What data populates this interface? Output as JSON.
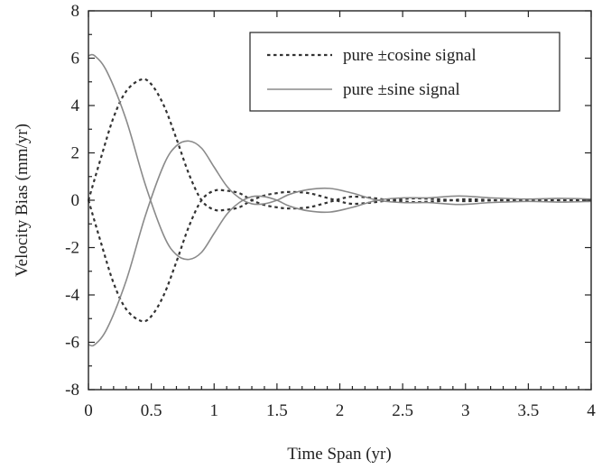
{
  "chart_data": {
    "type": "line",
    "title": "",
    "xlabel": "Time Span (yr)",
    "ylabel": "Velocity Bias (mm/yr)",
    "xlim": [
      0,
      4
    ],
    "ylim": [
      -8,
      8
    ],
    "x_ticks": [
      "0",
      "0.5",
      "1",
      "1.5",
      "2",
      "2.5",
      "3",
      "3.5",
      "4"
    ],
    "y_ticks": [
      "8",
      "6",
      "4",
      "2",
      "0",
      "-2",
      "-4",
      "-6",
      "-8"
    ],
    "grid": false,
    "legend_position": "top-right",
    "legend": [
      {
        "label": "pure ±cosine signal",
        "style": "dotted"
      },
      {
        "label": "pure ±sine signal",
        "style": "solid"
      }
    ],
    "series": [
      {
        "name": "pure ±cosine signal",
        "style": "dotted",
        "color": "#333333",
        "x": [
          0,
          0.1,
          0.2,
          0.3,
          0.42,
          0.5,
          0.6,
          0.7,
          0.8,
          0.9,
          1.0,
          1.1,
          1.2,
          1.3,
          1.4,
          1.5,
          1.6,
          1.75,
          1.9,
          2.0,
          2.1,
          2.25,
          2.4,
          2.5,
          2.6,
          2.75,
          2.9,
          3.0,
          3.25,
          3.5,
          3.75,
          4.0
        ],
        "y": [
          0,
          1.8,
          3.5,
          4.6,
          5.1,
          4.9,
          4.0,
          2.6,
          1.1,
          0.0,
          -0.4,
          -0.4,
          -0.3,
          0.0,
          0.2,
          0.3,
          0.35,
          0.3,
          0.1,
          -0.05,
          -0.15,
          -0.1,
          0.0,
          0.05,
          0.08,
          0.05,
          0.0,
          -0.04,
          0.0,
          0.03,
          0.0,
          0.0
        ]
      },
      {
        "name": "pure ±cosine signal",
        "style": "dotted",
        "color": "#333333",
        "x": [
          0,
          0.1,
          0.2,
          0.3,
          0.42,
          0.5,
          0.6,
          0.7,
          0.8,
          0.9,
          1.0,
          1.1,
          1.2,
          1.3,
          1.4,
          1.5,
          1.6,
          1.75,
          1.9,
          2.0,
          2.1,
          2.25,
          2.4,
          2.5,
          2.6,
          2.75,
          2.9,
          3.0,
          3.25,
          3.5,
          3.75,
          4.0
        ],
        "y": [
          0,
          -1.8,
          -3.5,
          -4.6,
          -5.1,
          -4.9,
          -4.0,
          -2.6,
          -1.1,
          0.0,
          0.4,
          0.4,
          0.3,
          0.0,
          -0.2,
          -0.3,
          -0.35,
          -0.3,
          -0.1,
          0.05,
          0.15,
          0.1,
          0.0,
          -0.05,
          -0.08,
          -0.05,
          0.0,
          0.04,
          0.0,
          -0.03,
          0.0,
          0.0
        ]
      },
      {
        "name": "pure ±sine signal",
        "style": "solid",
        "color": "#8a8a8a",
        "x": [
          0,
          0.05,
          0.15,
          0.3,
          0.45,
          0.6,
          0.7,
          0.8,
          0.9,
          1.0,
          1.1,
          1.2,
          1.3,
          1.4,
          1.5,
          1.6,
          1.75,
          1.92,
          2.1,
          2.3,
          2.5,
          2.7,
          2.95,
          3.2,
          3.5,
          3.75,
          4.0
        ],
        "y": [
          6.1,
          6.1,
          5.4,
          3.4,
          0.7,
          -1.5,
          -2.3,
          -2.5,
          -2.2,
          -1.4,
          -0.6,
          -0.1,
          0.15,
          0.15,
          0.0,
          -0.25,
          -0.45,
          -0.5,
          -0.3,
          0.0,
          0.1,
          0.1,
          0.18,
          0.1,
          0.05,
          0.08,
          0.05
        ]
      },
      {
        "name": "pure ±sine signal",
        "style": "solid",
        "color": "#8a8a8a",
        "x": [
          0,
          0.05,
          0.15,
          0.3,
          0.45,
          0.6,
          0.7,
          0.8,
          0.9,
          1.0,
          1.1,
          1.2,
          1.3,
          1.4,
          1.5,
          1.6,
          1.75,
          1.92,
          2.1,
          2.3,
          2.5,
          2.7,
          2.95,
          3.2,
          3.5,
          3.75,
          4.0
        ],
        "y": [
          -6.1,
          -6.1,
          -5.4,
          -3.4,
          -0.7,
          1.5,
          2.3,
          2.5,
          2.2,
          1.4,
          0.6,
          0.1,
          -0.15,
          -0.15,
          0.0,
          0.25,
          0.45,
          0.5,
          0.3,
          0.0,
          -0.1,
          -0.1,
          -0.18,
          -0.1,
          -0.05,
          -0.08,
          -0.05
        ]
      }
    ]
  }
}
